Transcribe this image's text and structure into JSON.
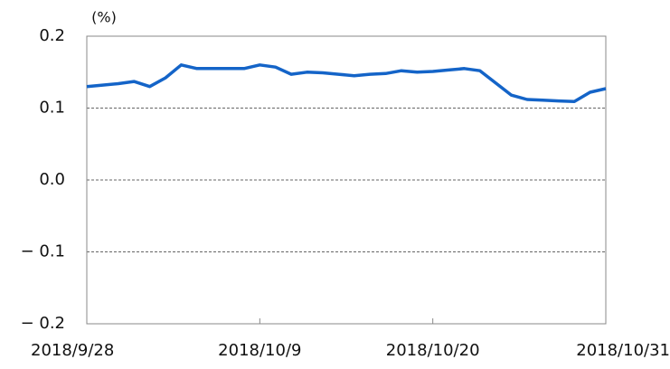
{
  "chart_data": {
    "type": "line",
    "y_axis_label": "(%)",
    "x": [
      "2018/9/28",
      "2018/9/29",
      "2018/9/30",
      "2018/10/1",
      "2018/10/2",
      "2018/10/3",
      "2018/10/4",
      "2018/10/5",
      "2018/10/6",
      "2018/10/7",
      "2018/10/8",
      "2018/10/9",
      "2018/10/10",
      "2018/10/11",
      "2018/10/12",
      "2018/10/13",
      "2018/10/14",
      "2018/10/15",
      "2018/10/16",
      "2018/10/17",
      "2018/10/18",
      "2018/10/19",
      "2018/10/20",
      "2018/10/21",
      "2018/10/22",
      "2018/10/23",
      "2018/10/24",
      "2018/10/25",
      "2018/10/26",
      "2018/10/27",
      "2018/10/28",
      "2018/10/29",
      "2018/10/30",
      "2018/10/31"
    ],
    "series": [
      {
        "color": "#1464c8",
        "values": [
          0.13,
          0.132,
          0.134,
          0.137,
          0.13,
          0.142,
          0.16,
          0.155,
          0.155,
          0.155,
          0.155,
          0.16,
          0.157,
          0.147,
          0.15,
          0.149,
          0.147,
          0.145,
          0.147,
          0.148,
          0.152,
          0.15,
          0.151,
          0.153,
          0.155,
          0.152,
          0.135,
          0.118,
          0.112,
          0.111,
          0.11,
          0.109,
          0.122,
          0.127
        ]
      }
    ],
    "xticks": [
      "2018/9/28",
      "2018/10/9",
      "2018/10/20",
      "2018/10/31"
    ],
    "ylim": [
      -0.2,
      0.2
    ],
    "yticks": [
      {
        "value": -0.2,
        "label": "− 0.2"
      },
      {
        "value": -0.1,
        "label": "− 0.1"
      },
      {
        "value": 0,
        "label": "0.0"
      },
      0.1,
      0.2
    ],
    "grid": true
  }
}
